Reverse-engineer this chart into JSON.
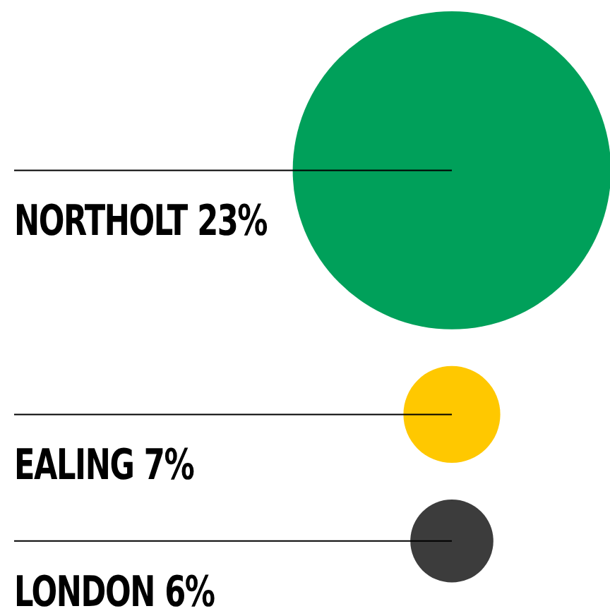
{
  "chart_data": {
    "type": "other",
    "categories": [
      "NORTHOLT",
      "EALING",
      "LONDON"
    ],
    "values": [
      23,
      7,
      6
    ],
    "value_labels": [
      "23%",
      "7%",
      "6%"
    ],
    "colors": [
      "#00a05a",
      "#ffc800",
      "#3c3c3c"
    ]
  }
}
